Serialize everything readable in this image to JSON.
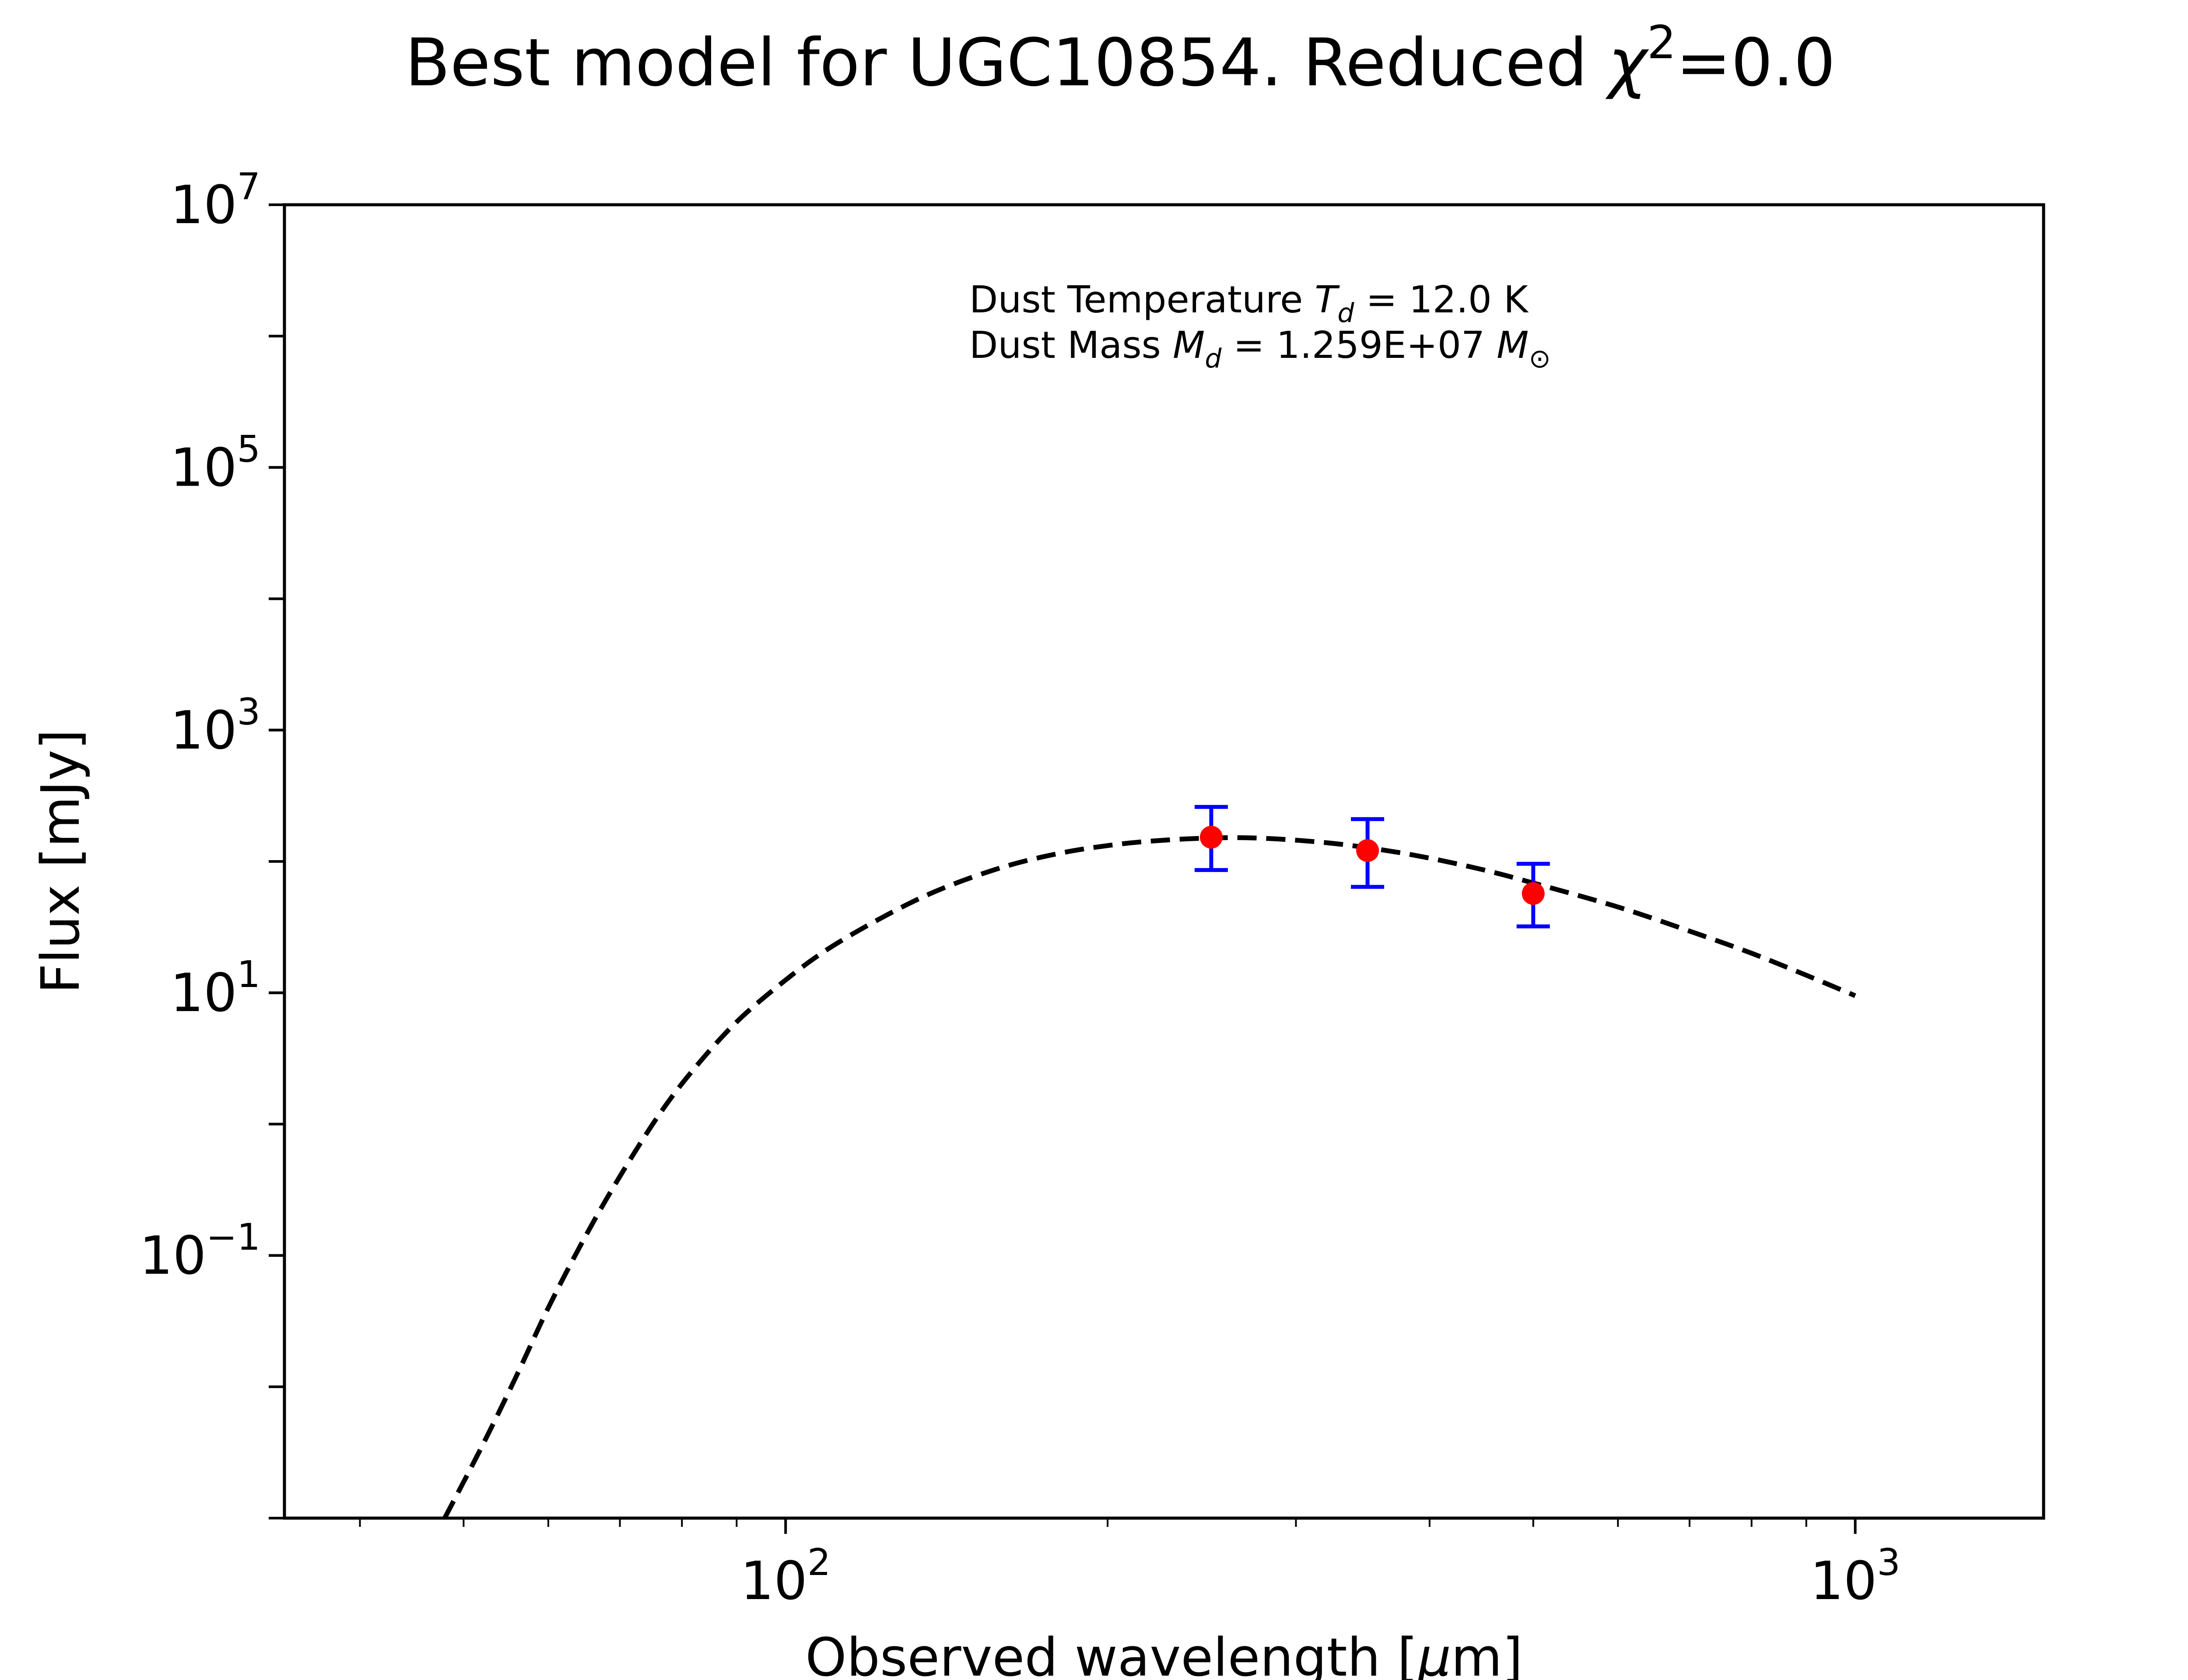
{
  "chart_data": {
    "type": "scatter",
    "title": {
      "main": "Best model for UGC10854. Reduced ",
      "chi": "χ",
      "chi_power": "2",
      "tail": "=0.0"
    },
    "xlabel": {
      "main": "Observed wavelength [",
      "mu": "μ",
      "tail": "m]"
    },
    "ylabel": "Flux [mJy]",
    "x_scale": "log",
    "y_scale": "log",
    "xlim": [
      34,
      1500
    ],
    "ylim": [
      0.001,
      10000000
    ],
    "grid": false,
    "x_ticks": [
      {
        "value": 100,
        "base": "10",
        "exp": "2"
      },
      {
        "value": 1000,
        "base": "10",
        "exp": "3"
      }
    ],
    "y_ticks": [
      {
        "value": 0.1,
        "base": "10",
        "exp": "−1"
      },
      {
        "value": 10,
        "base": "10",
        "exp": "1"
      },
      {
        "value": 1000,
        "base": "10",
        "exp": "3"
      },
      {
        "value": 100000,
        "base": "10",
        "exp": "5"
      },
      {
        "value": 10000000,
        "base": "10",
        "exp": "7"
      }
    ],
    "annotation": {
      "line1": {
        "prefix": "Dust Temperature ",
        "sym": "T",
        "sub": "d",
        "suffix": " = 12.0 K"
      },
      "line2": {
        "prefix": "Dust Mass ",
        "sym": "M",
        "sub": "d",
        "suffix": " = 1.259E+07 ",
        "unit_sym": "M",
        "unit_sub": "⊙"
      }
    },
    "model_curve": {
      "style": "dashed",
      "color": "#000000",
      "x": [
        48,
        52,
        56,
        60,
        65,
        70,
        76,
        82,
        90,
        100,
        110,
        125,
        140,
        160,
        180,
        200,
        220,
        250,
        280,
        320,
        360,
        400,
        450,
        500,
        600,
        700,
        800,
        900,
        1000
      ],
      "y": [
        0.001,
        0.0035,
        0.012,
        0.04,
        0.14,
        0.4,
        1.15,
        2.6,
        6.0,
        12.5,
        22,
        40,
        62,
        91,
        115,
        132,
        143,
        151,
        150,
        139,
        123,
        106,
        86,
        68.5,
        45,
        29.5,
        20,
        13.6,
        9.5
      ]
    },
    "observations": {
      "marker_color": "#ff0000",
      "errorbar_color": "#0000ff",
      "points": [
        {
          "x": 250,
          "y": 153,
          "y_low": 86,
          "y_high": 260
        },
        {
          "x": 350,
          "y": 121,
          "y_low": 64,
          "y_high": 210
        },
        {
          "x": 500,
          "y": 57,
          "y_low": 32,
          "y_high": 96
        }
      ]
    }
  }
}
